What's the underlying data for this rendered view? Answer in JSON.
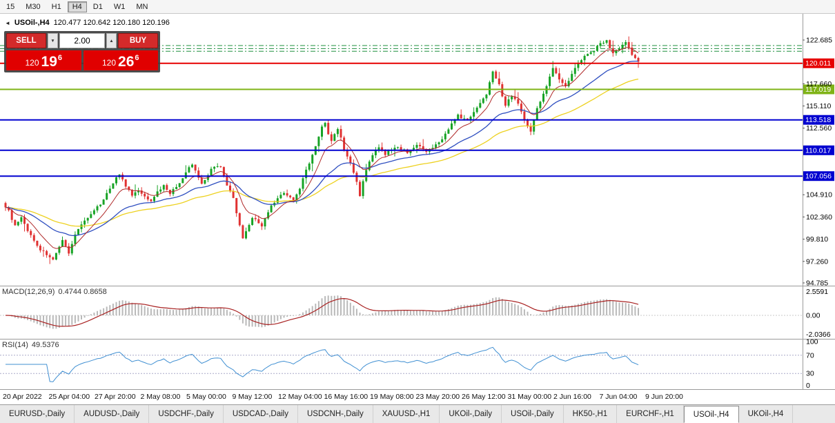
{
  "toolbar": {
    "timeframes": [
      "15",
      "M30",
      "H1",
      "H4",
      "D1",
      "W1",
      "MN"
    ],
    "active_timeframe": "H4"
  },
  "chart": {
    "collapse_icon": "◄",
    "title_symbol": "USOil-,H4",
    "title_ohlc": "120.477 120.642 120.180 120.196",
    "trade_panel": {
      "sell_label": "SELL",
      "buy_label": "BUY",
      "volume": "2.00",
      "spin_up": "▲",
      "spin_down": "▼",
      "sell_price": {
        "prefix": "120",
        "big": "19",
        "sup": "6"
      },
      "buy_price": {
        "prefix": "120",
        "big": "26",
        "sup": "6"
      }
    }
  },
  "chart_data": {
    "type": "candlestick",
    "symbol": "USOil-",
    "timeframe": "H4",
    "last_ohlc": {
      "open": 120.477,
      "high": 120.642,
      "low": 120.18,
      "close": 120.196
    },
    "price_axis": {
      "ticks": [
        "122.685",
        "117.660",
        "115.110",
        "112.560",
        "104.910",
        "102.360",
        "99.810",
        "97.260",
        "94.785"
      ]
    },
    "hlines": [
      {
        "price": 120.011,
        "label": "120.011",
        "color": "#e60000",
        "width": 2
      },
      {
        "price": 117.019,
        "label": "117.019",
        "color": "#7fb317",
        "width": 2
      },
      {
        "price": 113.518,
        "label": "113.518",
        "color": "#0000d0",
        "width": 2
      },
      {
        "price": 110.017,
        "label": "110.017",
        "color": "#0000d0",
        "width": 2
      },
      {
        "price": 107.056,
        "label": "107.056",
        "color": "#0000d0",
        "width": 2
      }
    ],
    "dash_lines": [
      {
        "price": 122.05,
        "color": "#1e8f3e"
      },
      {
        "price": 121.7,
        "color": "#1e8f3e"
      },
      {
        "price": 121.4,
        "color": "#1e8f3e"
      }
    ],
    "n_candles": 200,
    "candle_colors": {
      "up": "#17a325",
      "down": "#e03232"
    },
    "ma": [
      {
        "period": 55,
        "color": "#edd11f",
        "width": 1.3
      },
      {
        "period": 28,
        "color": "#2f4fc0",
        "width": 1.3
      },
      {
        "period": 9,
        "color": "#b02a2a",
        "width": 1
      }
    ],
    "waypoints": [
      [
        0,
        103.6
      ],
      [
        1,
        103.0
      ],
      [
        3,
        101.3
      ],
      [
        5,
        102.2
      ],
      [
        8,
        100.2
      ],
      [
        11,
        98.6
      ],
      [
        14,
        97.8
      ],
      [
        15,
        97.4
      ],
      [
        17,
        98.8
      ],
      [
        18,
        99.6
      ],
      [
        20,
        98.3
      ],
      [
        22,
        100.3
      ],
      [
        24,
        101.6
      ],
      [
        27,
        102.6
      ],
      [
        30,
        103.9
      ],
      [
        33,
        105.6
      ],
      [
        35,
        107.0
      ],
      [
        36,
        107.3
      ],
      [
        38,
        105.9
      ],
      [
        40,
        104.8
      ],
      [
        42,
        105.4
      ],
      [
        44,
        104.6
      ],
      [
        46,
        104.3
      ],
      [
        48,
        105.2
      ],
      [
        50,
        106.0
      ],
      [
        52,
        105.1
      ],
      [
        54,
        105.8
      ],
      [
        56,
        106.8
      ],
      [
        58,
        108.0
      ],
      [
        59,
        108.4
      ],
      [
        61,
        106.9
      ],
      [
        62,
        106.2
      ],
      [
        64,
        107.2
      ],
      [
        65,
        107.9
      ],
      [
        67,
        108.3
      ],
      [
        68,
        108.2
      ],
      [
        70,
        105.9
      ],
      [
        72,
        104.5
      ],
      [
        74,
        101.3
      ],
      [
        75,
        99.8
      ],
      [
        76,
        100.6
      ],
      [
        78,
        102.3
      ],
      [
        80,
        101.7
      ],
      [
        81,
        101.4
      ],
      [
        83,
        102.8
      ],
      [
        84,
        103.6
      ],
      [
        86,
        104.4
      ],
      [
        88,
        105.2
      ],
      [
        90,
        104.6
      ],
      [
        91,
        104.2
      ],
      [
        93,
        105.6
      ],
      [
        94,
        106.9
      ],
      [
        96,
        108.6
      ],
      [
        98,
        110.4
      ],
      [
        100,
        112.7
      ],
      [
        101,
        113.1
      ],
      [
        102,
        111.9
      ],
      [
        103,
        111.0
      ],
      [
        104,
        111.9
      ],
      [
        105,
        112.5
      ],
      [
        106,
        111.4
      ],
      [
        107,
        110.0
      ],
      [
        109,
        108.6
      ],
      [
        111,
        106.3
      ],
      [
        112,
        104.9
      ],
      [
        113,
        106.4
      ],
      [
        114,
        107.8
      ],
      [
        115,
        108.8
      ],
      [
        117,
        109.9
      ],
      [
        118,
        110.3
      ],
      [
        120,
        109.6
      ],
      [
        122,
        110.1
      ],
      [
        124,
        110.4
      ],
      [
        126,
        110.0
      ],
      [
        127,
        109.8
      ],
      [
        129,
        110.4
      ],
      [
        130,
        110.6
      ],
      [
        132,
        110.1
      ],
      [
        133,
        109.8
      ],
      [
        135,
        110.3
      ],
      [
        137,
        110.9
      ],
      [
        139,
        111.9
      ],
      [
        140,
        112.5
      ],
      [
        142,
        113.5
      ],
      [
        143,
        114.0
      ],
      [
        145,
        113.6
      ],
      [
        146,
        113.4
      ],
      [
        148,
        114.5
      ],
      [
        149,
        115.0
      ],
      [
        151,
        115.9
      ],
      [
        152,
        116.5
      ],
      [
        153,
        117.9
      ],
      [
        154,
        119.2
      ],
      [
        155,
        118.4
      ],
      [
        156,
        117.5
      ],
      [
        157,
        116.3
      ],
      [
        158,
        115.2
      ],
      [
        159,
        115.8
      ],
      [
        160,
        116.3
      ],
      [
        161,
        115.9
      ],
      [
        162,
        115.4
      ],
      [
        163,
        114.4
      ],
      [
        164,
        113.5
      ],
      [
        165,
        112.9
      ],
      [
        166,
        112.3
      ],
      [
        167,
        113.4
      ],
      [
        168,
        114.8
      ],
      [
        169,
        115.7
      ],
      [
        170,
        116.6
      ],
      [
        171,
        117.5
      ],
      [
        172,
        118.5
      ],
      [
        173,
        119.4
      ],
      [
        174,
        118.8
      ],
      [
        175,
        118.2
      ],
      [
        176,
        117.7
      ],
      [
        177,
        117.3
      ],
      [
        178,
        118.0
      ],
      [
        179,
        118.8
      ],
      [
        180,
        119.6
      ],
      [
        181,
        120.1
      ],
      [
        182,
        120.5
      ],
      [
        183,
        120.8
      ],
      [
        184,
        121.1
      ],
      [
        185,
        121.4
      ],
      [
        186,
        121.5
      ],
      [
        187,
        121.9
      ],
      [
        188,
        122.3
      ],
      [
        189,
        122.5
      ],
      [
        190,
        122.6
      ],
      [
        191,
        121.8
      ],
      [
        192,
        121.2
      ],
      [
        193,
        121.5
      ],
      [
        194,
        121.8
      ],
      [
        195,
        122.1
      ],
      [
        196,
        122.4
      ],
      [
        197,
        121.8
      ],
      [
        198,
        121.0
      ],
      [
        199,
        120.5
      ],
      [
        200,
        120.2
      ]
    ],
    "time_labels": [
      "20 Apr 2022",
      "25 Apr 04:00",
      "27 Apr 20:00",
      "2 May 08:00",
      "5 May 00:00",
      "9 May 12:00",
      "12 May 04:00",
      "16 May 16:00",
      "19 May 08:00",
      "23 May 20:00",
      "26 May 12:00",
      "31 May 00:00",
      "2 Jun 16:00",
      "7 Jun 04:00",
      "9 Jun 20:00"
    ],
    "macd": {
      "name": "MACD(12,26,9)",
      "values": "0.4744 0.8658",
      "axis_labels": [
        "2.5591",
        "0.00",
        "-2.0366"
      ],
      "axis_values": [
        2.5591,
        0,
        -2.0366
      ],
      "hist_color": "#b9b9b9",
      "signal_color": "#a82020"
    },
    "rsi": {
      "name": "RSI(14)",
      "value": "49.5376",
      "axis_labels": [
        "100",
        "70",
        "30",
        "0"
      ],
      "axis_values": [
        100,
        70,
        30,
        0
      ],
      "levels": [
        70,
        30
      ],
      "line_color": "#3f8fd2"
    }
  },
  "tabs": {
    "items": [
      "EURUSD-,Daily",
      "AUDUSD-,Daily",
      "USDCHF-,Daily",
      "USDCAD-,Daily",
      "USDCNH-,Daily",
      "XAUUSD-,H1",
      "UKOil-,Daily",
      "USOil-,Daily",
      "HK50-,H1",
      "EURCHF-,H1",
      "USOil-,H4",
      "UKOil-,H4"
    ],
    "active": "USOil-,H4"
  }
}
